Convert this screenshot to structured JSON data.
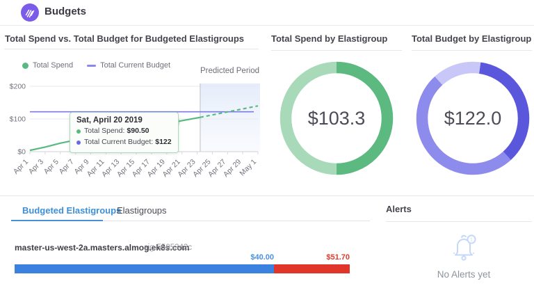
{
  "header": {
    "title": "Budgets",
    "logo": "spotinst-logo"
  },
  "line_panel": {
    "title": "Total Spend vs. Total Budget for Budgeted Elastigroups",
    "legend": [
      {
        "label": "Total Spend",
        "marker": "dot",
        "color": "#57ba80"
      },
      {
        "label": "Total Current Budget",
        "marker": "dash",
        "color": "#8a88ec"
      }
    ],
    "predicted_label": "Predicted Period",
    "tooltip": {
      "title": "Sat, April 20 2019",
      "rows": [
        {
          "label": "Total Spend:",
          "value": "$90.50",
          "bullet_color": "#57ba80"
        },
        {
          "label": "Total Current Budget:",
          "value": "$122",
          "bullet_color": "#6b68e6"
        }
      ]
    }
  },
  "spend_panel": {
    "title": "Total Spend by Elastigroup",
    "value": "$103.3"
  },
  "budget_panel": {
    "title": "Total Budget by Elastigroup",
    "value": "$122.0"
  },
  "tabs": [
    {
      "label": "Budgeted Elastigroups",
      "active": true
    },
    {
      "label": "Elastigroups",
      "active": false
    }
  ],
  "elastigroup_row": {
    "name": "master-us-west-2a.masters.almog.ek8s.com",
    "sig": "sig-5505342c",
    "spent_label": "$40.00",
    "over_label": "$51.70"
  },
  "alerts": {
    "title": "Alerts",
    "empty_text": "No Alerts yet",
    "badge": "1"
  },
  "chart_data": [
    {
      "id": "spend_vs_budget",
      "type": "line",
      "title": "Total Spend vs. Total Budget for Budgeted Elastigroups",
      "x_tick_labels": [
        "Apr 1",
        "Apr 3",
        "Apr 5",
        "Apr 7",
        "Apr 9",
        "Apr 11",
        "Apr 13",
        "Apr 15",
        "Apr 17",
        "Apr 19",
        "Apr 21",
        "Apr 23",
        "Apr 25",
        "Apr 27",
        "Apr 29",
        "May 1"
      ],
      "x_tick_days": [
        0,
        2,
        4,
        6,
        8,
        10,
        12,
        14,
        16,
        18,
        20,
        22,
        24,
        26,
        28,
        30
      ],
      "days_total": 30,
      "ylim": [
        0,
        200
      ],
      "y_ticks": [
        {
          "label": "$0",
          "value": 0
        },
        {
          "label": "$100",
          "value": 100
        },
        {
          "label": "$200",
          "value": 200
        }
      ],
      "grid": true,
      "legend_position": "top-left",
      "budget_line": {
        "name": "Total Current Budget",
        "value": 122,
        "color": "#7b79e8"
      },
      "spend_series": {
        "name": "Total Spend",
        "color": "#57ba80",
        "points": [
          [
            0,
            4
          ],
          [
            2,
            14
          ],
          [
            4,
            26
          ],
          [
            7,
            40
          ],
          [
            9,
            48
          ],
          [
            12,
            60
          ],
          [
            14,
            68
          ],
          [
            17,
            80
          ],
          [
            19,
            90.5
          ],
          [
            22.4,
            105
          ]
        ]
      },
      "predicted_series": {
        "name": "Total Spend (predicted)",
        "color": "#57ba80",
        "dashed": true,
        "points": [
          [
            22.4,
            105
          ],
          [
            30,
            140
          ]
        ]
      },
      "predicted_start_day": 22.4,
      "marker": {
        "day": 19,
        "value": 90.5
      }
    },
    {
      "id": "spend_donut",
      "type": "pie",
      "title": "Total Spend by Elastigroup",
      "center_label": "$103.3",
      "total": 100,
      "rotation_deg": 0,
      "segments": [
        {
          "name": "segment-1",
          "value": 50,
          "color": "#5cb980"
        },
        {
          "name": "segment-2",
          "value": 50,
          "color": "#a8dab9"
        }
      ]
    },
    {
      "id": "budget_donut",
      "type": "pie",
      "title": "Total Budget by Elastigroup",
      "center_label": "$122.0",
      "total": 100,
      "rotation_deg": 8,
      "segments": [
        {
          "name": "segment-1",
          "value": 36,
          "color": "#5a57dc"
        },
        {
          "name": "segment-2",
          "value": 50,
          "color": "#8d8bec"
        },
        {
          "name": "segment-3",
          "value": 14,
          "color": "#c8c7f7"
        }
      ]
    },
    {
      "id": "budget_usage_bar",
      "type": "bar",
      "item": "master-us-west-2a.masters.almog.ek8s.com",
      "total": 51.7,
      "segments": [
        {
          "label": "$40.00",
          "value": 40,
          "color": "#3b82e0"
        },
        {
          "label": "$51.70",
          "value": 11.7,
          "color": "#e0352a"
        }
      ]
    }
  ]
}
